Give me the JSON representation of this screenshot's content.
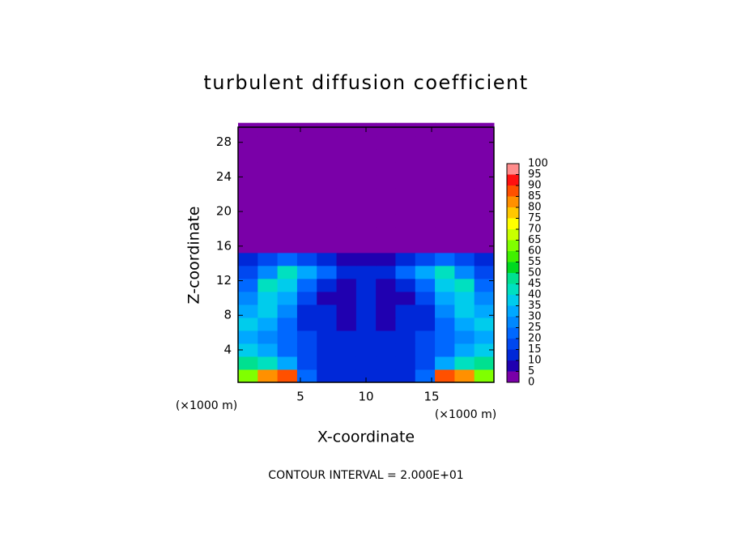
{
  "chart_data": {
    "type": "heatmap",
    "title": "turbulent diffusion coefficient",
    "x_label": "X-coordinate",
    "y_label": "Z-coordinate",
    "x_unit_labels": [
      "(×1000 m)",
      "(×1000 m)"
    ],
    "footer": "CONTOUR INTERVAL = 2.000E+01",
    "xlim": [
      0.25,
      19.75
    ],
    "ylim": [
      0.25,
      29.75
    ],
    "xticks": [
      5,
      10,
      15
    ],
    "yticks": [
      4,
      8,
      12,
      16,
      20,
      24,
      28
    ],
    "x": [
      1,
      2.5,
      4,
      5.5,
      7,
      8.5,
      10,
      11.5,
      13,
      14.5,
      16,
      17.5,
      19
    ],
    "y": [
      1,
      2.5,
      4,
      5.5,
      7,
      8.5,
      10,
      11.5,
      13,
      14.5,
      16,
      17.5,
      19,
      20.5,
      22,
      23.5,
      25,
      26.5,
      28,
      29.5
    ],
    "z": [
      [
        60,
        80,
        85,
        20,
        12,
        10,
        12,
        10,
        12,
        20,
        85,
        80,
        60
      ],
      [
        45,
        40,
        30,
        15,
        10,
        10,
        12,
        10,
        10,
        15,
        30,
        40,
        45
      ],
      [
        35,
        30,
        22,
        15,
        10,
        10,
        12,
        10,
        10,
        15,
        22,
        30,
        35
      ],
      [
        30,
        28,
        20,
        15,
        10,
        10,
        12,
        10,
        10,
        15,
        20,
        28,
        30
      ],
      [
        35,
        30,
        20,
        12,
        10,
        8,
        12,
        8,
        10,
        12,
        20,
        30,
        35
      ],
      [
        30,
        35,
        25,
        12,
        10,
        8,
        10,
        8,
        10,
        12,
        25,
        35,
        30
      ],
      [
        25,
        35,
        30,
        15,
        8,
        8,
        10,
        8,
        8,
        15,
        30,
        35,
        25
      ],
      [
        20,
        40,
        35,
        20,
        12,
        8,
        10,
        8,
        12,
        20,
        35,
        40,
        20
      ],
      [
        15,
        25,
        40,
        30,
        20,
        12,
        12,
        12,
        20,
        30,
        40,
        25,
        15
      ],
      [
        10,
        15,
        20,
        15,
        10,
        8,
        8,
        8,
        10,
        15,
        20,
        15,
        10
      ],
      [
        0,
        0,
        0,
        0,
        0,
        0,
        3,
        0,
        0,
        0,
        0,
        0,
        0
      ],
      [
        0,
        0,
        0,
        0,
        0,
        0,
        0,
        0,
        0,
        0,
        0,
        0,
        0
      ],
      [
        0,
        0,
        0,
        0,
        0,
        0,
        0,
        0,
        0,
        0,
        0,
        0,
        0
      ],
      [
        0,
        0,
        0,
        0,
        0,
        0,
        0,
        0,
        0,
        0,
        0,
        0,
        0
      ],
      [
        0,
        0,
        0,
        0,
        0,
        0,
        0,
        0,
        0,
        0,
        0,
        0,
        0
      ],
      [
        0,
        0,
        0,
        0,
        0,
        0,
        0,
        0,
        0,
        0,
        0,
        0,
        0
      ],
      [
        0,
        0,
        0,
        0,
        0,
        0,
        0,
        0,
        0,
        0,
        0,
        0,
        0
      ],
      [
        0,
        0,
        0,
        0,
        0,
        0,
        0,
        0,
        0,
        0,
        0,
        0,
        0
      ],
      [
        0,
        0,
        0,
        0,
        0,
        0,
        0,
        0,
        0,
        0,
        0,
        0,
        0
      ],
      [
        0,
        0,
        0,
        0,
        0,
        0,
        0,
        0,
        0,
        0,
        0,
        0,
        0
      ]
    ],
    "colorbar_ticks": [
      0,
      5,
      10,
      15,
      20,
      25,
      30,
      35,
      40,
      45,
      50,
      55,
      60,
      65,
      70,
      75,
      80,
      85,
      90,
      95,
      100
    ],
    "colors": [
      "#7a00a8",
      "#2000b0",
      "#0028d8",
      "#0048f0",
      "#0068ff",
      "#0088ff",
      "#00a8ff",
      "#00ccec",
      "#00e0c0",
      "#00e090",
      "#00d820",
      "#40f000",
      "#80ff00",
      "#c8ff00",
      "#ffff00",
      "#ffc800",
      "#ff9000",
      "#ff5000",
      "#ff1010",
      "#ff8c8c"
    ]
  }
}
